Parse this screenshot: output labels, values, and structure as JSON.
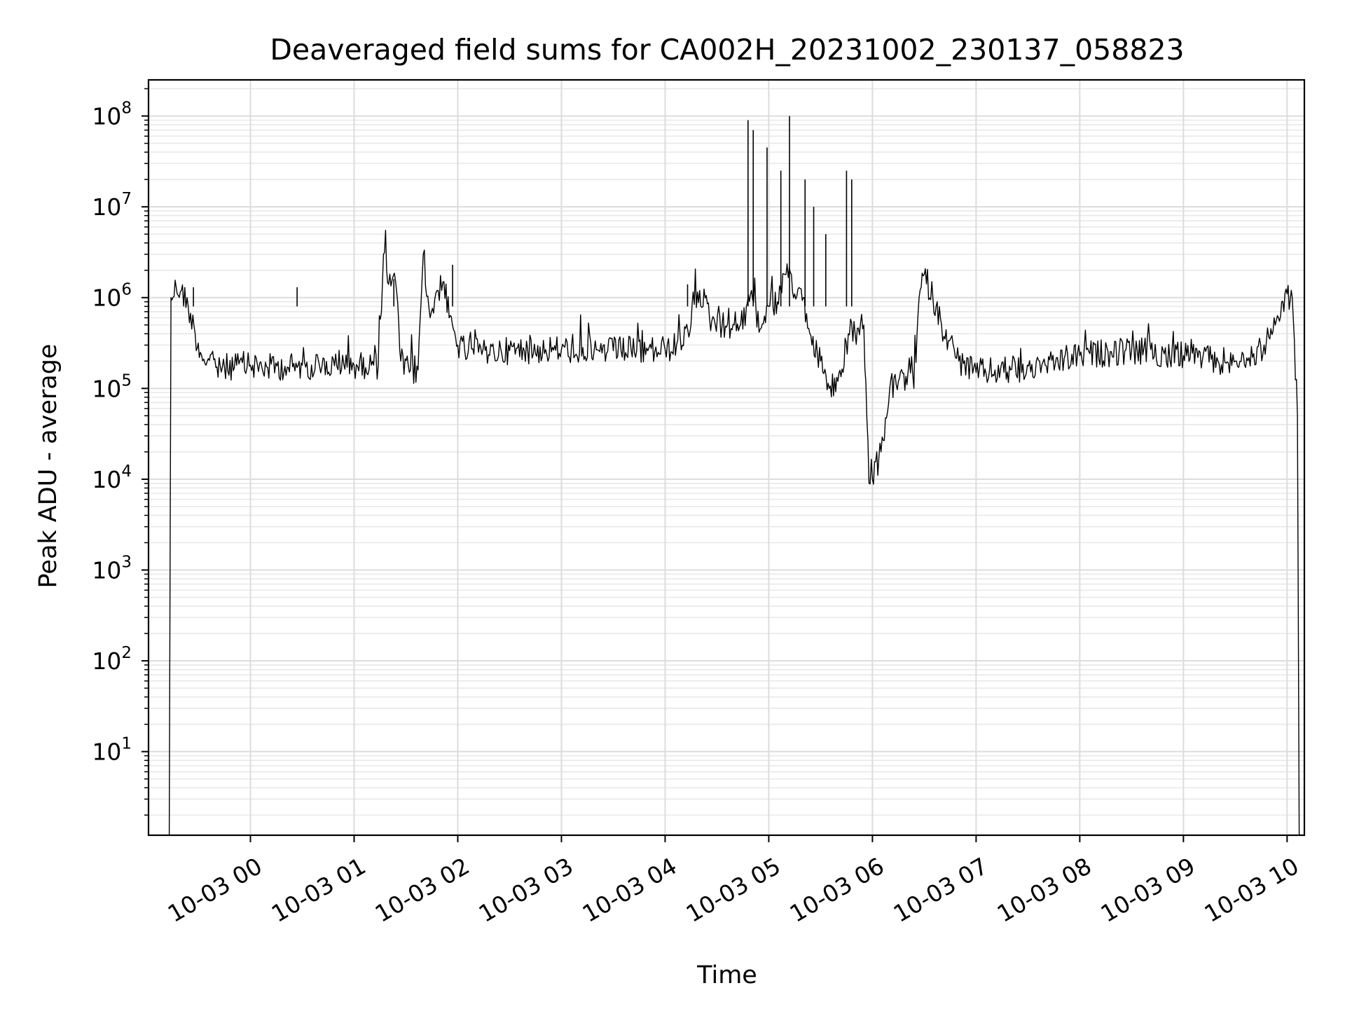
{
  "chart_data": {
    "type": "line",
    "title": "Deaveraged field sums for CA002H_20231002_230137_058823",
    "xlabel": "Time",
    "ylabel": "Peak ADU - average",
    "yscale": "log",
    "ylim": [
      1.2,
      250000000
    ],
    "xlim": [
      "2023-10-02 23:01",
      "2023-10-03 10:10"
    ],
    "grid": true,
    "color": "#000000",
    "x_ticks": [
      {
        "label": "10-03 00",
        "t": "2023-10-03 00:00"
      },
      {
        "label": "10-03 01",
        "t": "2023-10-03 01:00"
      },
      {
        "label": "10-03 02",
        "t": "2023-10-03 02:00"
      },
      {
        "label": "10-03 03",
        "t": "2023-10-03 03:00"
      },
      {
        "label": "10-03 04",
        "t": "2023-10-03 04:00"
      },
      {
        "label": "10-03 05",
        "t": "2023-10-03 05:00"
      },
      {
        "label": "10-03 06",
        "t": "2023-10-03 06:00"
      },
      {
        "label": "10-03 07",
        "t": "2023-10-03 07:00"
      },
      {
        "label": "10-03 08",
        "t": "2023-10-03 08:00"
      },
      {
        "label": "10-03 09",
        "t": "2023-10-03 09:00"
      },
      {
        "label": "10-03 10",
        "t": "2023-10-03 10:00"
      }
    ],
    "y_ticks": [
      {
        "base": "10",
        "exp": "1",
        "value": 10
      },
      {
        "base": "10",
        "exp": "2",
        "value": 100
      },
      {
        "base": "10",
        "exp": "3",
        "value": 1000
      },
      {
        "base": "10",
        "exp": "4",
        "value": 10000
      },
      {
        "base": "10",
        "exp": "5",
        "value": 100000
      },
      {
        "base": "10",
        "exp": "6",
        "value": 1000000
      },
      {
        "base": "10",
        "exp": "7",
        "value": 10000000
      },
      {
        "base": "10",
        "exp": "8",
        "value": 100000000
      }
    ],
    "series": [
      {
        "x": [
          "2023-10-02 23:13",
          "2023-10-02 23:14",
          "2023-10-02 23:17",
          "2023-10-02 23:20",
          "2023-10-02 23:24",
          "2023-10-02 23:28",
          "2023-10-02 23:31",
          "2023-10-02 23:35",
          "2023-10-02 23:40",
          "2023-10-02 23:45",
          "2023-10-02 23:52",
          "2023-10-03 00:00",
          "2023-10-03 00:10",
          "2023-10-03 00:20",
          "2023-10-03 00:27",
          "2023-10-03 00:30",
          "2023-10-03 00:40",
          "2023-10-03 00:50",
          "2023-10-03 01:00",
          "2023-10-03 01:10",
          "2023-10-03 01:14",
          "2023-10-03 01:17",
          "2023-10-03 01:20",
          "2023-10-03 01:24",
          "2023-10-03 01:27",
          "2023-10-03 01:32",
          "2023-10-03 01:37",
          "2023-10-03 01:40",
          "2023-10-03 01:44",
          "2023-10-03 01:48",
          "2023-10-03 01:52",
          "2023-10-03 01:55",
          "2023-10-03 02:00",
          "2023-10-03 02:06",
          "2023-10-03 02:12",
          "2023-10-03 02:30",
          "2023-10-03 03:00",
          "2023-10-03 03:30",
          "2023-10-03 03:50",
          "2023-10-03 04:00",
          "2023-10-03 04:10",
          "2023-10-03 04:15",
          "2023-10-03 04:20",
          "2023-10-03 04:27",
          "2023-10-03 04:33",
          "2023-10-03 04:40",
          "2023-10-03 04:45",
          "2023-10-03 04:47",
          "2023-10-03 04:50",
          "2023-10-03 04:55",
          "2023-10-03 05:00",
          "2023-10-03 05:05",
          "2023-10-03 05:10",
          "2023-10-03 05:15",
          "2023-10-03 05:20",
          "2023-10-03 05:25",
          "2023-10-03 05:30",
          "2023-10-03 05:35",
          "2023-10-03 05:40",
          "2023-10-03 05:43",
          "2023-10-03 05:46",
          "2023-10-03 05:50",
          "2023-10-03 05:55",
          "2023-10-03 05:58",
          "2023-10-03 06:00",
          "2023-10-03 06:05",
          "2023-10-03 06:10",
          "2023-10-03 06:15",
          "2023-10-03 06:20",
          "2023-10-03 06:24",
          "2023-10-03 06:27",
          "2023-10-03 06:30",
          "2023-10-03 06:35",
          "2023-10-03 06:40",
          "2023-10-03 06:50",
          "2023-10-03 07:00",
          "2023-10-03 07:20",
          "2023-10-03 07:40",
          "2023-10-03 08:00",
          "2023-10-03 08:30",
          "2023-10-03 09:00",
          "2023-10-03 09:20",
          "2023-10-03 09:30",
          "2023-10-03 09:40",
          "2023-10-03 09:50",
          "2023-10-03 09:55",
          "2023-10-03 10:00",
          "2023-10-03 10:03",
          "2023-10-03 10:06",
          "2023-10-03 10:07"
        ],
        "y": [
          1.2,
          1000000,
          1300000,
          1200000,
          800000,
          400000,
          250000,
          200000,
          170000,
          170000,
          180000,
          180000,
          170000,
          175000,
          170000,
          180000,
          175000,
          175000,
          180000,
          180000,
          180000,
          3000000,
          1400000,
          1500000,
          200000,
          150000,
          160000,
          3000000,
          600000,
          1200000,
          1500000,
          600000,
          300000,
          250000,
          250000,
          260000,
          270000,
          260000,
          260000,
          270000,
          300000,
          500000,
          1200000,
          550000,
          500000,
          500000,
          450000,
          800000,
          1200000,
          450000,
          800000,
          900000,
          1800000,
          1100000,
          1000000,
          300000,
          200000,
          100000,
          120000,
          150000,
          400000,
          400000,
          500000,
          9000,
          10000,
          20000,
          100000,
          120000,
          110000,
          100000,
          1000000,
          1800000,
          1000000,
          500000,
          200000,
          150000,
          160000,
          180000,
          230000,
          260000,
          230000,
          200000,
          200000,
          220000,
          350000,
          600000,
          1100000,
          1000000,
          50000,
          1.2
        ],
        "spikes": [
          {
            "x": "2023-10-03 04:48",
            "y": 90000000
          },
          {
            "x": "2023-10-03 04:51",
            "y": 70000000
          },
          {
            "x": "2023-10-03 04:59",
            "y": 45000000
          },
          {
            "x": "2023-10-03 05:07",
            "y": 25000000
          },
          {
            "x": "2023-10-03 05:12",
            "y": 100000000
          },
          {
            "x": "2023-10-03 05:21",
            "y": 20000000
          },
          {
            "x": "2023-10-03 05:26",
            "y": 10000000
          },
          {
            "x": "2023-10-03 05:33",
            "y": 5000000
          },
          {
            "x": "2023-10-03 05:45",
            "y": 25000000
          },
          {
            "x": "2023-10-03 05:48",
            "y": 20000000
          },
          {
            "x": "2023-10-03 04:13",
            "y": 1400000
          },
          {
            "x": "2023-10-02 23:27",
            "y": 1300000
          },
          {
            "x": "2023-10-03 00:27",
            "y": 1300000
          },
          {
            "x": "2023-10-03 01:23",
            "y": 1600000
          },
          {
            "x": "2023-10-03 01:57",
            "y": 2300000
          }
        ]
      }
    ]
  }
}
